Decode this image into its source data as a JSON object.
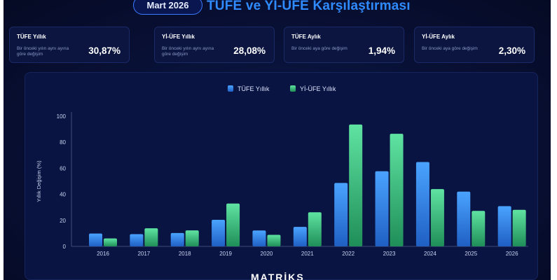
{
  "header": {
    "date_label": "Mart 2026",
    "title": "TÜFE ve Yİ-ÜFE Karşılaştırması"
  },
  "cards": [
    {
      "title": "TÜFE Yıllık",
      "desc": "Bir önceki yılın aynı ayına göre değişim",
      "value": "30,87%"
    },
    {
      "title": "Yİ-ÜFE Yıllık",
      "desc": "Bir önceki yılın aynı ayına göre değişim",
      "value": "28,08%"
    },
    {
      "title": "TÜFE Aylık",
      "desc": "Bir önceki aya göre değişim",
      "value": "1,94%"
    },
    {
      "title": "Yİ-ÜFE Aylık",
      "desc": "Bir önceki aya göre değişim",
      "value": "2,30%"
    }
  ],
  "brand": "MATRİKS",
  "colors": {
    "tufe": "#2f7fe8",
    "yiufe": "#2fbf7a",
    "title": "#2f8bff",
    "background": "#081035"
  },
  "chart_data": {
    "type": "bar",
    "categories": [
      "2016",
      "2017",
      "2018",
      "2019",
      "2020",
      "2021",
      "2022",
      "2023",
      "2024",
      "2025",
      "2026"
    ],
    "series": [
      {
        "name": "TÜFE Yıllık",
        "values": [
          9.9,
          9.4,
          10.3,
          20.4,
          12.2,
          15.0,
          48.7,
          57.7,
          64.8,
          42.1,
          30.9
        ]
      },
      {
        "name": "Yİ-ÜFE Yıllık",
        "values": [
          6.1,
          13.9,
          12.3,
          32.9,
          8.9,
          26.2,
          93.6,
          86.5,
          44.0,
          27.3,
          28.1
        ]
      }
    ],
    "ylabel": "Yıllık Değişim (%)",
    "yticks": [
      "0",
      "20",
      "40",
      "60",
      "80",
      "100"
    ],
    "ylim": [
      0,
      100
    ],
    "grid": false,
    "legend": "top-center"
  }
}
